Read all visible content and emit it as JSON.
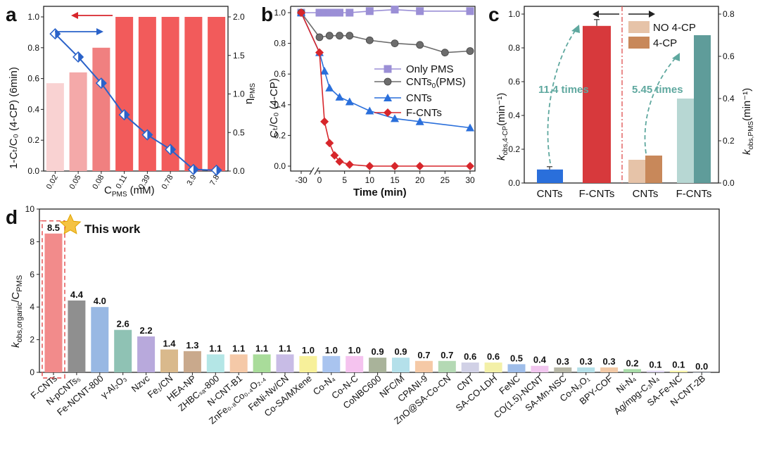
{
  "chart_data": [
    {
      "panel": "a",
      "type": "bar",
      "categories": [
        "0.02",
        "0.05",
        "0.08",
        "0.11",
        "0.39",
        "0.78",
        "3.9",
        "7.8"
      ],
      "xlabel_main": "C",
      "xlabel_sub": "PMS",
      "xlabel_unit": " (mM)",
      "ylabel_left": "1-Cₜ/C₀ (4-CP) (6min)",
      "ylabel_right_main": "η",
      "ylabel_right_sub": "PMS",
      "ylim_left": [
        0,
        1.0
      ],
      "ylim_right": [
        0,
        2.0
      ],
      "yticks_left": [
        "0.0",
        "0.2",
        "0.4",
        "0.6",
        "0.8",
        "1.0"
      ],
      "yticks_right": [
        "0.0",
        "0.5",
        "1.0",
        "1.5",
        "2.0"
      ],
      "series": [
        {
          "name": "1-Ct/C0 (4-CP) (6min)",
          "type": "bar",
          "axis": "left",
          "values": [
            0.57,
            0.64,
            0.8,
            1.0,
            1.0,
            1.0,
            1.0,
            1.0
          ],
          "colors": [
            "#f9d2d2",
            "#f4a9a9",
            "#f08080",
            "#f25b5b",
            "#f25b5b",
            "#f25b5b",
            "#f25b5b",
            "#f25b5b"
          ]
        },
        {
          "name": "ηPMS",
          "type": "line",
          "axis": "right",
          "color": "#2a62c9",
          "values": [
            1.78,
            1.48,
            1.14,
            0.73,
            0.47,
            0.28,
            0.02,
            0.01
          ]
        }
      ]
    },
    {
      "panel": "b",
      "type": "line",
      "xlabel": "Time (min)",
      "ylabel_main": "Cₜ/C₀ (4-CP)",
      "xticks": [
        "-30",
        "0",
        "5",
        "10",
        "15",
        "20",
        "25",
        "30"
      ],
      "yticks": [
        "0.0",
        "0.2",
        "0.4",
        "0.6",
        "0.8",
        "1.0"
      ],
      "ylim": [
        0,
        1.0
      ],
      "series": [
        {
          "name": "Only PMS",
          "color": "#9b8fd6",
          "marker": "square",
          "x": [
            -30,
            0,
            1,
            2,
            3,
            4,
            6,
            10,
            15,
            20,
            30
          ],
          "y": [
            1.0,
            1.0,
            1.0,
            1.0,
            1.0,
            1.0,
            1.0,
            1.01,
            1.02,
            1.01,
            1.01
          ]
        },
        {
          "name_main": "CNTs",
          "name_sub": "0",
          "name_tail": "(PMS)",
          "color": "#6d6d6d",
          "marker": "circle",
          "x": [
            -30,
            0,
            2,
            4,
            6,
            10,
            15,
            20,
            25,
            30
          ],
          "y": [
            1.0,
            0.84,
            0.85,
            0.85,
            0.85,
            0.82,
            0.8,
            0.79,
            0.74,
            0.75
          ]
        },
        {
          "name": "CNTs",
          "color": "#2a6fdb",
          "marker": "triangle",
          "x": [
            -30,
            0,
            1,
            2,
            4,
            6,
            10,
            15,
            20,
            30
          ],
          "y": [
            1.0,
            0.74,
            0.62,
            0.51,
            0.45,
            0.42,
            0.36,
            0.31,
            0.29,
            0.25
          ]
        },
        {
          "name": "F-CNTs",
          "color": "#d7262b",
          "marker": "diamond",
          "x": [
            -30,
            0,
            1,
            2,
            3,
            4,
            6,
            10,
            15,
            20,
            30
          ],
          "y": [
            1.0,
            0.74,
            0.29,
            0.15,
            0.07,
            0.03,
            0.01,
            0.0,
            0.0,
            0.0,
            0.0
          ]
        }
      ]
    },
    {
      "panel": "c",
      "type": "bar",
      "xcategories": [
        "CNTs",
        "F-CNTs",
        "CNTs",
        "F-CNTs"
      ],
      "ylabel_left_main": "k",
      "ylabel_left_sub": "obs,4-CP",
      "ylabel_left_unit": "(min⁻¹)",
      "ylabel_right_main": "k",
      "ylabel_right_sub": "obs,PMS",
      "ylabel_right_unit": "(min⁻¹)",
      "ylim_left": [
        0,
        1.0
      ],
      "ylim_right": [
        0,
        0.8
      ],
      "yticks_left": [
        "0.0",
        "0.2",
        "0.4",
        "0.6",
        "0.8",
        "1.0"
      ],
      "yticks_right": [
        "0.0",
        "0.2",
        "0.4",
        "0.6",
        "0.8"
      ],
      "legend": [
        {
          "label": "NO 4-CP",
          "color": "#e6c3a8"
        },
        {
          "label": "4-CP",
          "color": "#c8885a"
        }
      ],
      "bars": [
        {
          "name": "CNTs k_obs,4-CP",
          "axis": "left",
          "value": 0.08,
          "color": "#2a6fdb"
        },
        {
          "name": "F-CNTs k_obs,4-CP",
          "axis": "left",
          "value": 0.93,
          "color": "#d7393c"
        },
        {
          "name": "CNTs NO 4-CP k_obs,PMS",
          "axis": "right",
          "value": 0.11,
          "color": "#e6c3a8"
        },
        {
          "name": "CNTs 4-CP k_obs,PMS",
          "axis": "right",
          "value": 0.13,
          "color": "#c8885a"
        },
        {
          "name": "F-CNTs NO 4-CP k_obs,PMS",
          "axis": "right",
          "value": 0.4,
          "color": "#b7d7d3"
        },
        {
          "name": "F-CNTs 4-CP k_obs,PMS",
          "axis": "right",
          "value": 0.7,
          "color": "#5f9c9a"
        }
      ],
      "annotations": [
        "11.4 times",
        "5.45 times"
      ]
    },
    {
      "panel": "d",
      "type": "bar",
      "ylabel_main": "k",
      "ylabel_sub": "obs,organic",
      "ylabel_tail": "/C",
      "ylabel_sub2": "PMS",
      "ylim": [
        0,
        10
      ],
      "yticks": [
        "0",
        "2",
        "4",
        "6",
        "8",
        "10"
      ],
      "highlight_label": "This work",
      "categories": [
        "F-CNTs",
        "N-pCNTs₅",
        "Fe-NCNT-800",
        "γ-Al₂O₃",
        "Nzvc",
        "Fe₁/CN",
        "HEA-NP",
        "ZHBCₛₐ-800",
        "N-CNT-B1",
        "ZnFe₀.₈Co₀.₄O₂.₄",
        "FeNi-Nv/CN",
        "Co-SA/MXene",
        "Co-N₄",
        "Co-N-C",
        "CoNBC600",
        "NFC/M",
        "CPANI-9",
        "ZnO@SA-Co-CN",
        "CNT",
        "SA-CO-LDH",
        "FeNC",
        "CO(1.5)-NCNT",
        "SA-Mn-NSC",
        "Co-N₃O₁",
        "BPY-COF",
        "Ni-N₄",
        "Ag/mpg-C₃N₄",
        "SA-Fe-NC",
        "N-CNT-2B"
      ],
      "values": [
        8.5,
        4.4,
        4.0,
        2.6,
        2.2,
        1.4,
        1.3,
        1.1,
        1.1,
        1.1,
        1.1,
        1.0,
        1.0,
        1.0,
        0.9,
        0.9,
        0.7,
        0.7,
        0.6,
        0.6,
        0.5,
        0.4,
        0.3,
        0.3,
        0.3,
        0.2,
        0.1,
        0.1,
        0.0
      ],
      "value_labels": [
        "8.5",
        "4.4",
        "4.0",
        "2.6",
        "2.2",
        "1.4",
        "1.3",
        "1.1",
        "1.1",
        "1.1",
        "1.1",
        "1.0",
        "1.0",
        "1.0",
        "0.9",
        "0.9",
        "0.7",
        "0.7",
        "0.6",
        "0.6",
        "0.5",
        "0.4",
        "0.3",
        "0.3",
        "0.3",
        "0.2",
        "0.1",
        "0.1",
        "0.0"
      ],
      "colors": [
        "#f28b8b",
        "#8f8f8f",
        "#98b8e3",
        "#8fc2b4",
        "#b8a9dc",
        "#d9b98c",
        "#c9a98c",
        "#b4e6e6",
        "#f5c9a8",
        "#a9dc9a",
        "#c8bce6",
        "#f7f09a",
        "#a9c4ef",
        "#f5c3ef",
        "#a9b39a",
        "#b4e0ea",
        "#f5c9a6",
        "#b4d9b4",
        "#d1d1e6",
        "#f3f0a8",
        "#9fbde9",
        "#f1c6ef",
        "#b7b7a6",
        "#b4dfe8",
        "#f2c9a6",
        "#a9dca9",
        "#ded6f0",
        "#f7f3a8",
        "#c9d6f0"
      ]
    }
  ],
  "panel_letters": [
    "a",
    "b",
    "c",
    "d"
  ]
}
